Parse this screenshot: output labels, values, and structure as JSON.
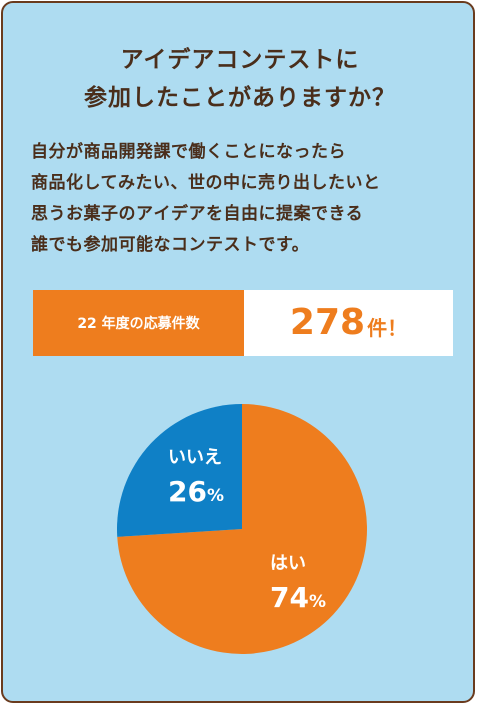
{
  "title_lines": [
    "アイデアコンテストに",
    "参加したことがありますか？"
  ],
  "description_lines": [
    "自分が商品開発課で働くことになったら",
    "商品化してみたい、世の中に売り出したいと",
    "思うお菓子のアイデアを自由に提案できる",
    "誰でも参加可能なコンテストです。"
  ],
  "count": {
    "label": "22 年度の応募件数",
    "value": "278",
    "unit": "件！"
  },
  "colors": {
    "background": "#aedcf1",
    "border": "#6a3b1e",
    "text": "#4a2e1b",
    "orange": "#ee7d1e",
    "blue": "#0f80c6"
  },
  "chart_data": {
    "type": "pie",
    "slices": [
      {
        "label": "はい",
        "value": 74,
        "display": "74%",
        "color": "#ee7d1e"
      },
      {
        "label": "いいえ",
        "value": 26,
        "display": "26%",
        "color": "#0f80c6"
      }
    ],
    "start_angle_deg": 0,
    "direction": "clockwise"
  }
}
